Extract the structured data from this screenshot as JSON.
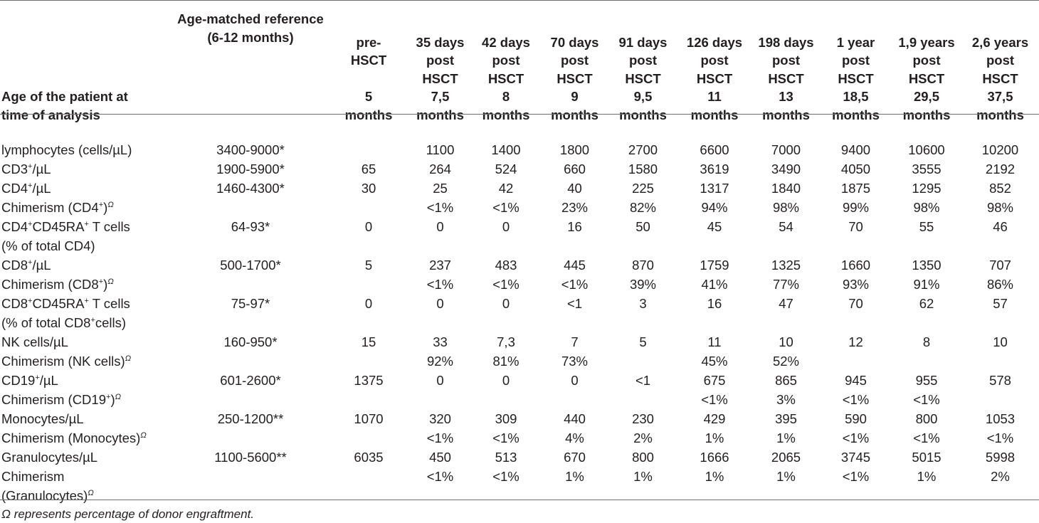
{
  "columns": [
    {
      "lines": [
        "Age of the patient at",
        "time of analysis"
      ]
    },
    {
      "lines": [
        "Age-matched reference",
        "(6-12 months)"
      ]
    },
    {
      "lines": [
        "pre-",
        "HSCT",
        "",
        "5",
        "months"
      ]
    },
    {
      "lines": [
        "35 days",
        "post",
        "HSCT",
        "7,5",
        "months"
      ]
    },
    {
      "lines": [
        "42 days",
        "post",
        "HSCT",
        "8",
        "months"
      ]
    },
    {
      "lines": [
        "70 days",
        "post",
        "HSCT",
        "9",
        "months"
      ]
    },
    {
      "lines": [
        "91 days",
        "post",
        "HSCT",
        "9,5",
        "months"
      ]
    },
    {
      "lines": [
        "126 days",
        "post",
        "HSCT",
        "11",
        "months"
      ]
    },
    {
      "lines": [
        "198 days",
        "post",
        "HSCT",
        "13",
        "months"
      ]
    },
    {
      "lines": [
        "1 year",
        "post",
        "HSCT",
        "18,5",
        "months"
      ]
    },
    {
      "lines": [
        "1,9 years",
        "post",
        "HSCT",
        "29,5",
        "months"
      ]
    },
    {
      "lines": [
        "2,6 years",
        "post",
        "HSCT",
        "37,5",
        "months"
      ]
    }
  ],
  "rows": [
    {
      "label": [
        "lymphocytes (cells/µL)"
      ],
      "cells": [
        "3400-9000*",
        "",
        "1100",
        "1400",
        "1800",
        "2700",
        "6600",
        "7000",
        "9400",
        "10600",
        "10200"
      ]
    },
    {
      "label": [
        "CD3<sup>+</sup>/µL"
      ],
      "cells": [
        "1900-5900*",
        "65",
        "264",
        "524",
        "660",
        "1580",
        "3619",
        "3490",
        "4050",
        "3555",
        "2192"
      ]
    },
    {
      "label": [
        "CD4<sup>+</sup>/µL"
      ],
      "cells": [
        "1460-4300*",
        "30",
        "25",
        "42",
        "40",
        "225",
        "1317",
        "1840",
        "1875",
        "1295",
        "852"
      ]
    },
    {
      "label": [
        "Chimerism (CD4<sup>+</sup>)<span class=\"omega\">Ω</span>"
      ],
      "cells": [
        "",
        "",
        "<1%",
        "<1%",
        "23%",
        "82%",
        "94%",
        "98%",
        "99%",
        "98%",
        "98%"
      ]
    },
    {
      "label": [
        "CD4<sup>+</sup>CD45RA<sup>+</sup> T cells",
        "(% of total CD4)"
      ],
      "cells": [
        "64-93*",
        "0",
        "0",
        "0",
        "16",
        "50",
        "45",
        "54",
        "70",
        "55",
        "46"
      ]
    },
    {
      "label": [
        "CD8<sup>+</sup>/µL"
      ],
      "cells": [
        "500-1700*",
        "5",
        "237",
        "483",
        "445",
        "870",
        "1759",
        "1325",
        "1660",
        "1350",
        "707"
      ]
    },
    {
      "label": [
        "Chimerism (CD8<sup>+</sup>)<span class=\"omega\">Ω</span>"
      ],
      "cells": [
        "",
        "",
        "<1%",
        "<1%",
        "<1%",
        "39%",
        "41%",
        "77%",
        "93%",
        "91%",
        "86%"
      ]
    },
    {
      "label": [
        "CD8<sup>+</sup>CD45RA<sup>+</sup> T cells",
        "(% of total CD8<sup>+</sup>cells)"
      ],
      "cells": [
        "75-97*",
        "0",
        "0",
        "0",
        "<1",
        "3",
        "16",
        "47",
        "70",
        "62",
        "57"
      ]
    },
    {
      "label": [
        "NK cells/µL"
      ],
      "cells": [
        "160-950*",
        "15",
        "33",
        "7,3",
        "7",
        "5",
        "11",
        "10",
        "12",
        "8",
        "10"
      ]
    },
    {
      "label": [
        "Chimerism (NK cells)<span class=\"omega\">Ω</span>"
      ],
      "cells": [
        "",
        "",
        "92%",
        "81%",
        "73%",
        "",
        "45%",
        "52%",
        "",
        "",
        ""
      ]
    },
    {
      "label": [
        "CD19<sup>+</sup>/µL"
      ],
      "cells": [
        "601-2600*",
        "1375",
        "0",
        "0",
        "0",
        "<1",
        "675",
        "865",
        "945",
        "955",
        "578"
      ]
    },
    {
      "label": [
        "Chimerism (CD19<sup>+</sup>)<span class=\"omega\">Ω</span>"
      ],
      "cells": [
        "",
        "",
        "",
        "",
        "",
        "",
        "<1%",
        "3%",
        "<1%",
        "<1%",
        ""
      ]
    },
    {
      "label": [
        "Monocytes/µL"
      ],
      "cells": [
        "250-1200**",
        "1070",
        "320",
        "309",
        "440",
        "230",
        "429",
        "395",
        "590",
        "800",
        "1053"
      ]
    },
    {
      "label": [
        "Chimerism (Monocytes)<span class=\"omega\">Ω</span>"
      ],
      "cells": [
        "",
        "",
        "<1%",
        "<1%",
        "4%",
        "2%",
        "1%",
        "1%",
        "<1%",
        "<1%",
        "<1%"
      ]
    },
    {
      "label": [
        "Granulocytes/µL"
      ],
      "cells": [
        "1100-5600**",
        "6035",
        "450",
        "513",
        "670",
        "800",
        "1666",
        "2065",
        "3745",
        "5015",
        "5998"
      ]
    },
    {
      "label": [
        "Chimerism",
        "(Granulocytes)<span class=\"omega\">Ω</span>"
      ],
      "cells": [
        "",
        "",
        "<1%",
        "<1%",
        "1%",
        "1%",
        "1%",
        "1%",
        "<1%",
        "1%",
        "2%"
      ]
    }
  ],
  "footnote": "Ω represents percentage of donor engraftment."
}
